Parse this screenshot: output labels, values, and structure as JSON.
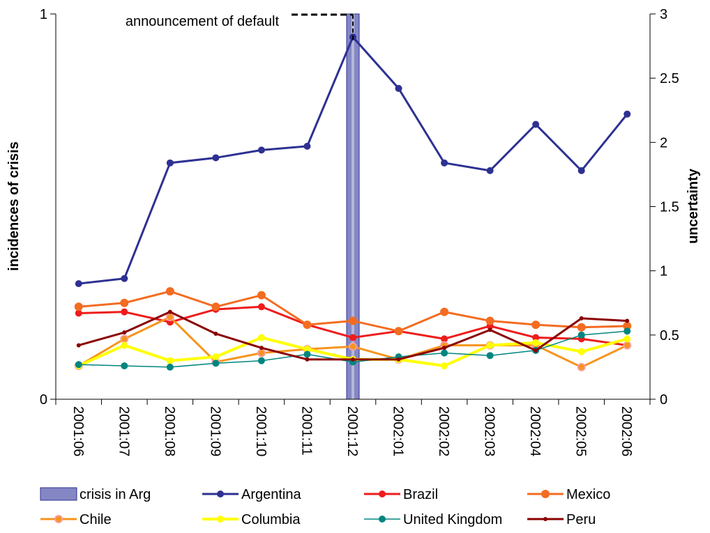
{
  "chart_data": {
    "type": "line",
    "title": "",
    "categories": [
      "2001:06",
      "2001:07",
      "2001:08",
      "2001:09",
      "2001:10",
      "2001:11",
      "2001:12",
      "2002:01",
      "2002:02",
      "2002:03",
      "2002:04",
      "2002:05",
      "2002:06"
    ],
    "left_axis": {
      "label": "incidences of crisis",
      "range": [
        0,
        1
      ],
      "ticks": [
        "0",
        "1"
      ]
    },
    "right_axis": {
      "label": "uncertainty",
      "range": [
        0,
        3
      ],
      "ticks": [
        "0",
        "0.5",
        "1",
        "1.5",
        "2",
        "2.5",
        "3"
      ]
    },
    "crisis_band": {
      "name": "crisis in Arg",
      "category": "2001:12",
      "value": 1,
      "color": "#5b5fb0"
    },
    "annotation": {
      "text": "announcement of default",
      "category": "2001:12"
    },
    "grid": false,
    "legend_position": "bottom",
    "series": [
      {
        "name": "Argentina",
        "color": "#2e3192",
        "width": 3,
        "marker": 5,
        "values": [
          0.9,
          0.94,
          1.84,
          1.88,
          1.94,
          1.97,
          2.82,
          2.42,
          1.84,
          1.78,
          2.14,
          1.78,
          2.22
        ]
      },
      {
        "name": "Brazil",
        "color": "#ee1c1c",
        "width": 3,
        "marker": 5,
        "values": [
          0.67,
          0.68,
          0.6,
          0.7,
          0.72,
          0.58,
          0.48,
          0.53,
          0.47,
          0.57,
          0.48,
          0.47,
          0.42
        ]
      },
      {
        "name": "Mexico",
        "color": "#f36c21",
        "width": 3,
        "marker": 6,
        "values": [
          0.72,
          0.75,
          0.84,
          0.72,
          0.81,
          0.58,
          0.61,
          0.53,
          0.68,
          0.61,
          0.58,
          0.56,
          0.57
        ]
      },
      {
        "name": "Chile",
        "color": "#f7941d",
        "width": 3,
        "marker": 5,
        "values": [
          0.26,
          0.47,
          0.64,
          0.29,
          0.36,
          0.39,
          0.41,
          0.31,
          0.42,
          0.42,
          0.42,
          0.25,
          0.42
        ]
      },
      {
        "name": "Columbia",
        "color": "#ffff00",
        "width": 4,
        "marker": 5,
        "values": [
          0.26,
          0.42,
          0.3,
          0.33,
          0.48,
          0.39,
          0.31,
          0.31,
          0.26,
          0.42,
          0.44,
          0.37,
          0.47
        ]
      },
      {
        "name": "United Kingdom",
        "color": "#00857f",
        "width": 1.5,
        "marker": 5,
        "values": [
          0.27,
          0.26,
          0.25,
          0.28,
          0.3,
          0.35,
          0.29,
          0.33,
          0.36,
          0.34,
          0.38,
          0.5,
          0.53
        ]
      },
      {
        "name": "Peru",
        "color": "#8b0000",
        "width": 3,
        "marker": 3,
        "values": [
          0.42,
          0.52,
          0.68,
          0.51,
          0.4,
          0.31,
          0.31,
          0.31,
          0.4,
          0.54,
          0.38,
          0.63,
          0.61
        ]
      }
    ]
  }
}
